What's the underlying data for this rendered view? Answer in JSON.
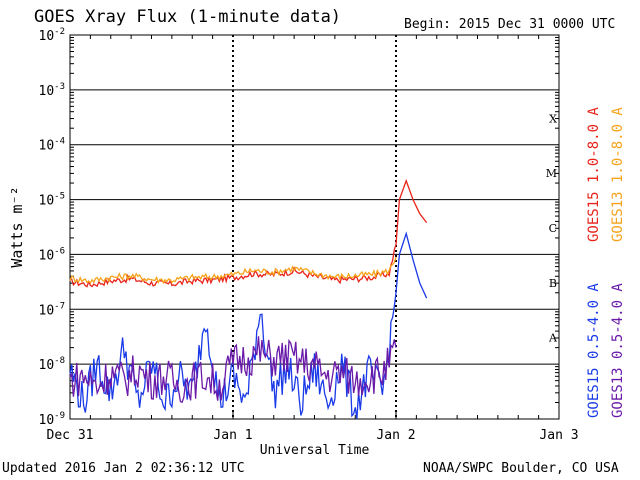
{
  "header": {
    "title": "GOES Xray Flux (1-minute data)",
    "begin": "Begin:  2015 Dec 31 0000 UTC"
  },
  "footer": {
    "updated": "Updated 2016 Jan  2 02:36:12 UTC",
    "credit": "NOAA/SWPC Boulder, CO USA"
  },
  "colors": {
    "goes15_long": "#e8231a",
    "goes13_long": "#f5a31a",
    "goes15_short": "#1a3ae8",
    "goes13_short": "#6a1aa8",
    "grid": "#000000",
    "background": "#ffffff"
  },
  "chart_data": {
    "type": "line",
    "title": "GOES Xray Flux (1-minute data)",
    "xlabel": "Universal Time",
    "ylabel": "Watts m⁻²",
    "yscale": "log",
    "ylim": [
      1e-09,
      0.01
    ],
    "xlim": [
      "2015-12-31 00:00",
      "2016-01-03 00:00"
    ],
    "x_ticks": [
      "Dec 31",
      "Jan 1",
      "Jan 2",
      "Jan 3"
    ],
    "y_ticks": [
      {
        "base": "10",
        "exp": "-9",
        "value": 1e-09
      },
      {
        "base": "10",
        "exp": "-8",
        "value": 1e-08
      },
      {
        "base": "10",
        "exp": "-7",
        "value": 1e-07
      },
      {
        "base": "10",
        "exp": "-6",
        "value": 1e-06
      },
      {
        "base": "10",
        "exp": "-5",
        "value": 1e-05
      },
      {
        "base": "10",
        "exp": "-4",
        "value": 0.0001
      },
      {
        "base": "10",
        "exp": "-3",
        "value": 0.001
      },
      {
        "base": "10",
        "exp": "-2",
        "value": 0.01
      }
    ],
    "flare_classes": [
      {
        "label": "A",
        "value": 1e-08
      },
      {
        "label": "B",
        "value": 1e-07
      },
      {
        "label": "C",
        "value": 1e-06
      },
      {
        "label": "M",
        "value": 1e-05
      },
      {
        "label": "X",
        "value": 0.0001
      }
    ],
    "grid": true,
    "legend_position": "right",
    "series": [
      {
        "name": "GOES15 1.0-8.0 A",
        "color": "#e8231a",
        "x_hours": [
          0,
          3,
          6,
          9,
          12,
          15,
          18,
          21,
          24,
          27,
          30,
          33,
          36,
          39,
          42,
          45,
          47,
          48,
          48.5,
          49.5,
          50.5,
          51.5,
          52.5
        ],
        "values": [
          3.2e-07,
          2.8e-07,
          3.3e-07,
          3.6e-07,
          3e-07,
          2.9e-07,
          3.3e-07,
          3.4e-07,
          3.8e-07,
          4.5e-07,
          4.3e-07,
          5e-07,
          4e-07,
          3.4e-07,
          3.6e-07,
          3.9e-07,
          4.5e-07,
          1.5e-06,
          1e-05,
          2.2e-05,
          1e-05,
          5.5e-06,
          3.8e-06
        ]
      },
      {
        "name": "GOES13 1.0-8.0 A",
        "color": "#f5a31a",
        "x_hours": [
          0,
          3,
          6,
          9,
          12,
          15,
          18,
          21,
          24,
          27,
          30,
          33,
          36,
          39,
          42,
          45,
          47,
          48
        ],
        "values": [
          3.7e-07,
          3.3e-07,
          3.8e-07,
          4.1e-07,
          3.5e-07,
          3.4e-07,
          3.8e-07,
          3.9e-07,
          4.3e-07,
          5.1e-07,
          4.8e-07,
          5.6e-07,
          4.5e-07,
          3.9e-07,
          4.1e-07,
          4.4e-07,
          5e-07,
          9e-07
        ]
      },
      {
        "name": "GOES15 0.5-4.0 A",
        "color": "#1a3ae8",
        "x_hours": [
          0,
          2,
          4,
          6,
          8,
          10,
          12,
          14,
          16,
          18,
          20,
          22,
          24,
          26,
          28,
          30,
          32,
          34,
          36,
          38,
          40,
          42,
          44,
          46,
          47,
          48,
          48.5,
          49.5,
          50.5,
          51.5,
          52.5
        ],
        "values": [
          8e-09,
          2e-09,
          1e-08,
          3e-09,
          2e-08,
          2e-09,
          1e-08,
          2e-09,
          6e-09,
          3e-09,
          8e-08,
          2e-09,
          6e-09,
          2e-09,
          1.1e-07,
          3e-09,
          9e-09,
          2e-09,
          8e-09,
          2e-09,
          1e-08,
          1.5e-09,
          7e-09,
          3e-09,
          2e-08,
          2e-07,
          1e-06,
          2.4e-06,
          8e-07,
          3e-07,
          1.6e-07
        ]
      },
      {
        "name": "GOES13 0.5-4.0 A",
        "color": "#6a1aa8",
        "x_hours": [
          0,
          2,
          4,
          6,
          8,
          10,
          12,
          14,
          16,
          18,
          20,
          22,
          24,
          26,
          28,
          30,
          32,
          34,
          36,
          38,
          40,
          42,
          44,
          46,
          47,
          48
        ],
        "values": [
          5e-09,
          6e-09,
          4e-09,
          7e-09,
          5e-09,
          8e-09,
          5e-09,
          6e-09,
          4e-09,
          5e-09,
          6e-09,
          4e-09,
          1.1e-08,
          1.3e-08,
          1.6e-08,
          1.2e-08,
          1.4e-08,
          1.1e-08,
          9e-09,
          6e-09,
          7e-09,
          5e-09,
          6e-09,
          7e-09,
          1e-08,
          2e-08
        ]
      }
    ]
  }
}
